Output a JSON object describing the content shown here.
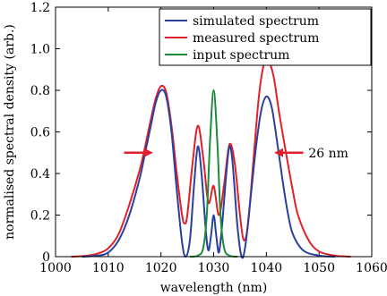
{
  "chart_data": {
    "type": "line",
    "title": "",
    "xlabel": "wavelength (nm)",
    "ylabel": "normalised spectral density (arb.)",
    "xlim": [
      1000,
      1060
    ],
    "ylim": [
      0,
      1.2
    ],
    "xticks": [
      1000,
      1010,
      1020,
      1030,
      1040,
      1050,
      1060
    ],
    "yticks": [
      0,
      0.2,
      0.4,
      0.6,
      0.8,
      1.0,
      1.2
    ],
    "xtick_labels": [
      "1000",
      "1010",
      "1020",
      "1030",
      "1040",
      "1050",
      "1060"
    ],
    "ytick_labels": [
      "0",
      "0.2",
      "0.4",
      "0.6",
      "0.8",
      "1.0",
      "1.2"
    ],
    "grid": false,
    "legend_position": "top-right",
    "series": [
      {
        "name": "simulated spectrum",
        "color": "#2b3f9e",
        "points": [
          [
            1005,
            0
          ],
          [
            1008,
            0.005
          ],
          [
            1010,
            0.02
          ],
          [
            1012,
            0.08
          ],
          [
            1014,
            0.2
          ],
          [
            1016,
            0.38
          ],
          [
            1017,
            0.5
          ],
          [
            1018,
            0.62
          ],
          [
            1019,
            0.74
          ],
          [
            1020,
            0.8
          ],
          [
            1021,
            0.77
          ],
          [
            1022,
            0.6
          ],
          [
            1023,
            0.32
          ],
          [
            1024,
            0.07
          ],
          [
            1024.7,
            0.0
          ],
          [
            1025.5,
            0.08
          ],
          [
            1026.3,
            0.35
          ],
          [
            1027,
            0.53
          ],
          [
            1027.7,
            0.4
          ],
          [
            1028.5,
            0.13
          ],
          [
            1029,
            0.03
          ],
          [
            1029.5,
            0.1
          ],
          [
            1030,
            0.2
          ],
          [
            1030.5,
            0.1
          ],
          [
            1031,
            0.02
          ],
          [
            1031.6,
            0.15
          ],
          [
            1032.4,
            0.4
          ],
          [
            1033,
            0.53
          ],
          [
            1033.6,
            0.45
          ],
          [
            1034.5,
            0.15
          ],
          [
            1035.3,
            0.0
          ],
          [
            1036,
            0.05
          ],
          [
            1037,
            0.28
          ],
          [
            1038,
            0.52
          ],
          [
            1039,
            0.7
          ],
          [
            1040,
            0.77
          ],
          [
            1041,
            0.72
          ],
          [
            1042,
            0.56
          ],
          [
            1043,
            0.38
          ],
          [
            1044,
            0.22
          ],
          [
            1045,
            0.11
          ],
          [
            1047,
            0.03
          ],
          [
            1050,
            0.005
          ],
          [
            1053,
            0
          ]
        ]
      },
      {
        "name": "measured spectrum",
        "color": "#e0202a",
        "points": [
          [
            1003,
            0
          ],
          [
            1006,
            0.005
          ],
          [
            1008,
            0.015
          ],
          [
            1010,
            0.04
          ],
          [
            1012,
            0.11
          ],
          [
            1014,
            0.25
          ],
          [
            1016,
            0.42
          ],
          [
            1017,
            0.53
          ],
          [
            1018,
            0.65
          ],
          [
            1019,
            0.76
          ],
          [
            1020,
            0.82
          ],
          [
            1021,
            0.79
          ],
          [
            1022,
            0.63
          ],
          [
            1023,
            0.4
          ],
          [
            1024,
            0.2
          ],
          [
            1024.5,
            0.16
          ],
          [
            1025,
            0.2
          ],
          [
            1026,
            0.45
          ],
          [
            1027,
            0.63
          ],
          [
            1028,
            0.48
          ],
          [
            1029,
            0.26
          ],
          [
            1030,
            0.34
          ],
          [
            1031,
            0.2
          ],
          [
            1032,
            0.35
          ],
          [
            1033,
            0.54
          ],
          [
            1034,
            0.45
          ],
          [
            1035,
            0.2
          ],
          [
            1035.7,
            0.08
          ],
          [
            1036.5,
            0.15
          ],
          [
            1037.5,
            0.45
          ],
          [
            1038.5,
            0.75
          ],
          [
            1039.3,
            0.9
          ],
          [
            1040,
            0.95
          ],
          [
            1040.8,
            0.92
          ],
          [
            1041.5,
            0.85
          ],
          [
            1042.5,
            0.68
          ],
          [
            1044,
            0.46
          ],
          [
            1045,
            0.32
          ],
          [
            1046,
            0.2
          ],
          [
            1048,
            0.08
          ],
          [
            1050,
            0.025
          ],
          [
            1053,
            0.005
          ],
          [
            1056,
            0
          ]
        ]
      },
      {
        "name": "input spectrum",
        "color": "#1a8c3a",
        "points": [
          [
            1025.5,
            0
          ],
          [
            1027,
            0.005
          ],
          [
            1028,
            0.04
          ],
          [
            1028.7,
            0.2
          ],
          [
            1029.3,
            0.55
          ],
          [
            1030,
            0.8
          ],
          [
            1030.7,
            0.55
          ],
          [
            1031.3,
            0.2
          ],
          [
            1032,
            0.04
          ],
          [
            1033,
            0.005
          ],
          [
            1034.5,
            0
          ]
        ]
      }
    ],
    "annotations": [
      {
        "text": "26 nm",
        "arrows": [
          {
            "from_x": 1013,
            "to_x": 1018,
            "y": 0.5
          },
          {
            "from_x": 1047,
            "to_x": 1042,
            "y": 0.5
          }
        ],
        "label_x": 1048,
        "color": "#e0202a"
      }
    ]
  }
}
